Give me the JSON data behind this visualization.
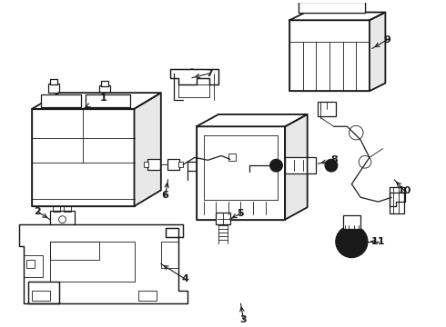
{
  "bg_color": "#ffffff",
  "line_color": "#1a1a1a",
  "fig_width": 4.9,
  "fig_height": 3.6,
  "dpi": 100,
  "label_fontsize": 8.0
}
